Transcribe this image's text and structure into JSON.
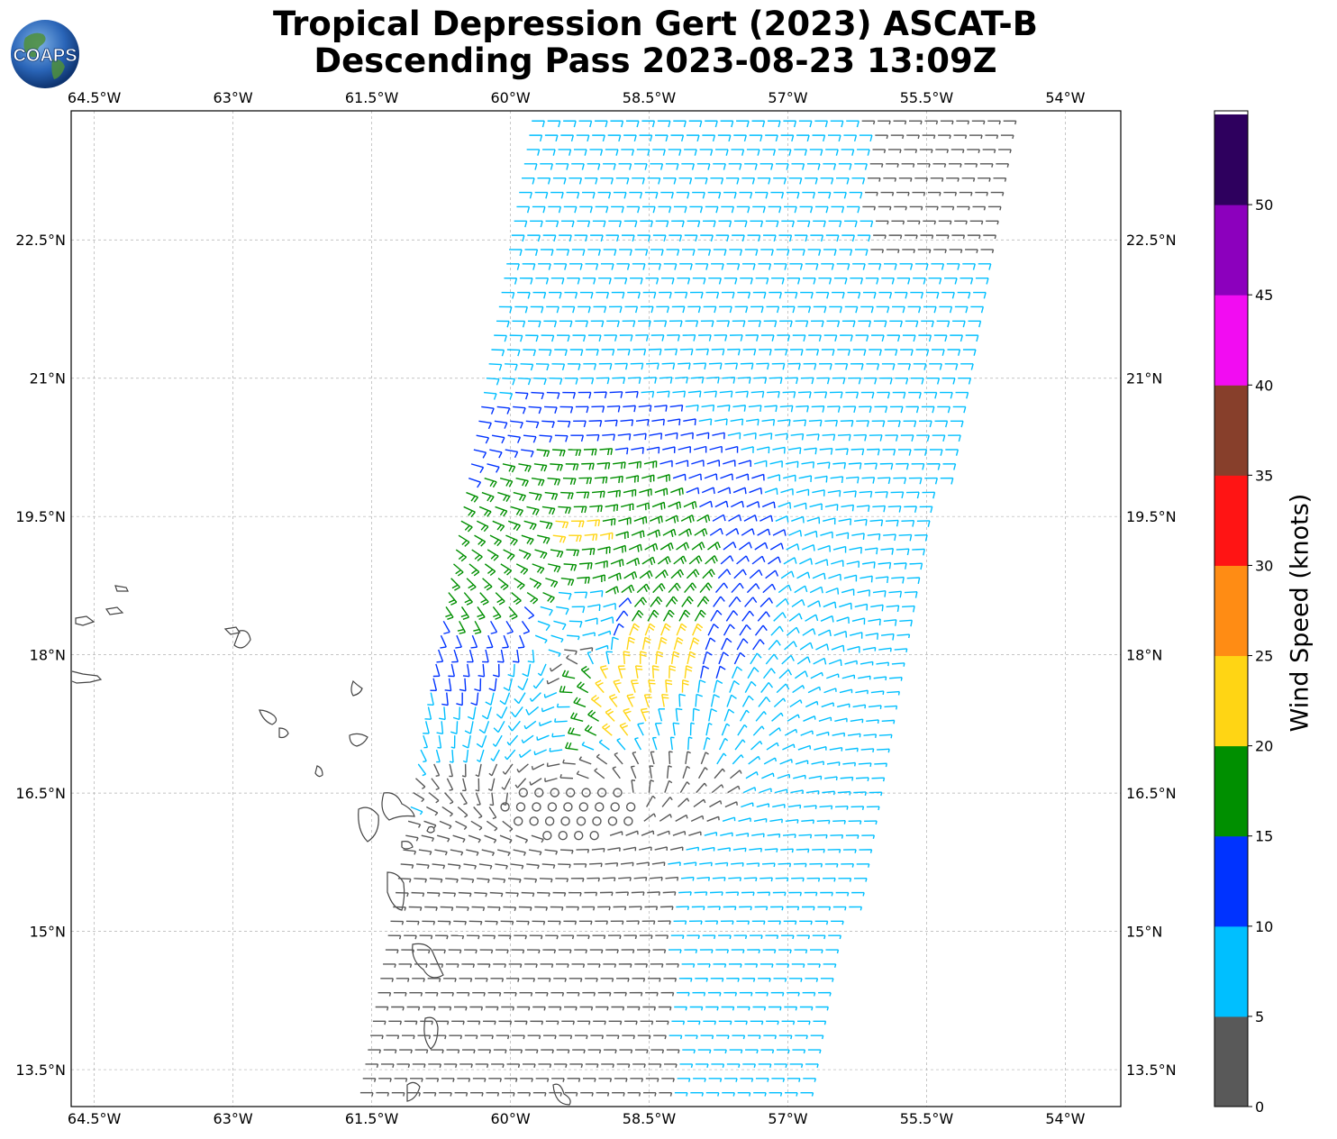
{
  "title": {
    "line1": "Tropical Depression Gert (2023) ASCAT-B",
    "line2": "Descending Pass 2023-08-23 13:09Z"
  },
  "logo": {
    "text": "COAPS",
    "icon": "coaps-globe-logo"
  },
  "map": {
    "lon_range": [
      -64.75,
      -53.4
    ],
    "lat_range": [
      13.1,
      23.9
    ],
    "lon_ticks": [
      {
        "value": -64.5,
        "label": "64.5°W"
      },
      {
        "value": -63,
        "label": "63°W"
      },
      {
        "value": -61.5,
        "label": "61.5°W"
      },
      {
        "value": -60,
        "label": "60°W"
      },
      {
        "value": -58.5,
        "label": "58.5°W"
      },
      {
        "value": -57,
        "label": "57°W"
      },
      {
        "value": -55.5,
        "label": "55.5°W"
      },
      {
        "value": -54,
        "label": "54°W"
      }
    ],
    "lat_ticks": [
      {
        "value": 22.5,
        "label": "22.5°N"
      },
      {
        "value": 21,
        "label": "21°N"
      },
      {
        "value": 19.5,
        "label": "19.5°N"
      },
      {
        "value": 18,
        "label": "18°N"
      },
      {
        "value": 16.5,
        "label": "16.5°N"
      },
      {
        "value": 15,
        "label": "15°N"
      },
      {
        "value": 13.5,
        "label": "13.5°N"
      }
    ],
    "gridlines": true,
    "grid_color": "#b0b0b0"
  },
  "colorbar": {
    "label": "Wind Speed (knots)",
    "colors": [
      "#595959",
      "#00bfff",
      "#0033ff",
      "#008f00",
      "#ffd514",
      "#ff8c14",
      "#ff1414",
      "#873f2b",
      "#f20cf2",
      "#8c00bd",
      "#2e005e"
    ],
    "tick_labels": [
      "0",
      "5",
      "10",
      "15",
      "20",
      "25",
      "30",
      "35",
      "40",
      "45",
      "50"
    ]
  },
  "chart_data": {
    "type": "wind_barbs",
    "center": {
      "lon": -59.35,
      "lat": 18.35
    },
    "swath": "ASCAT-B descending pass, winds mostly 5-20 knots around Gert"
  }
}
